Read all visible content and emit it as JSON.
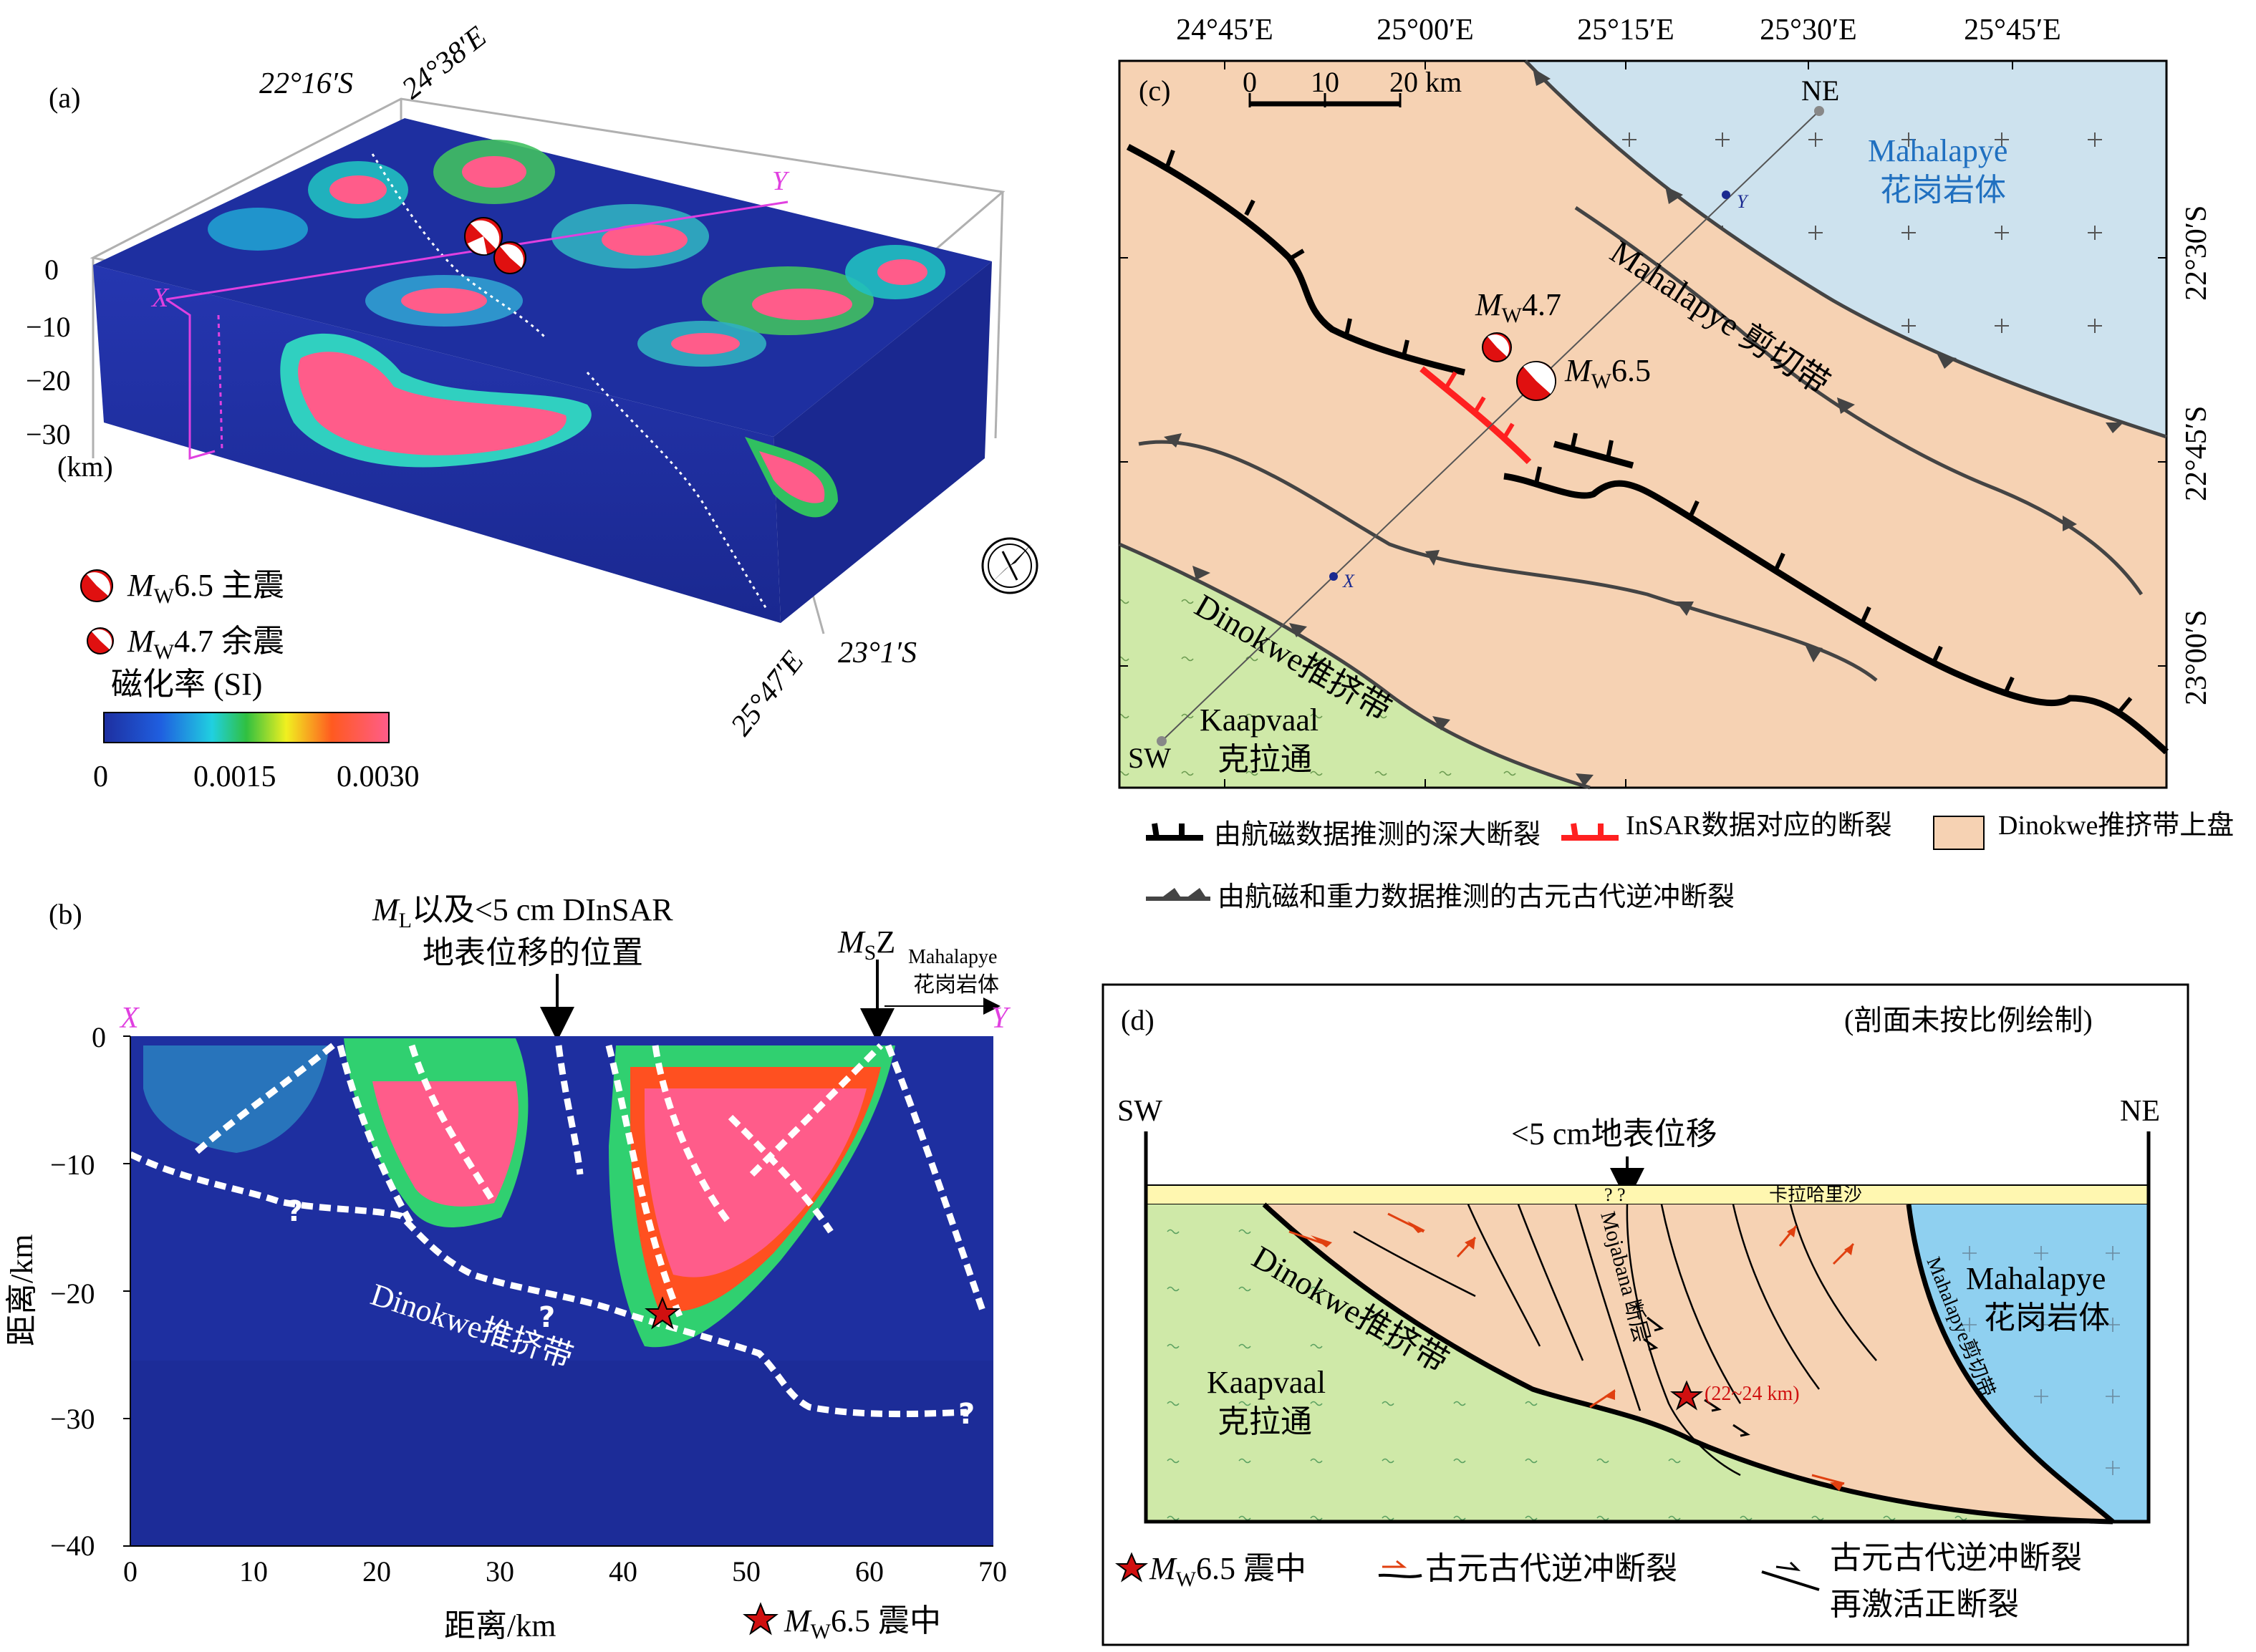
{
  "panel_a": {
    "label": "(a)",
    "coord_lat_top": "22°16′S",
    "coord_lon_top": "24°38′E",
    "coord_lat_bottom": "23°1′S",
    "coord_lon_bottom": "25°47′E",
    "depth_ticks": [
      "0",
      "−10",
      "−20",
      "−30"
    ],
    "depth_unit": "(km)",
    "profile_start": "X",
    "profile_end": "Y",
    "legend_mainshock_mag": "6.5 主震",
    "legend_aftershock_mag": "4.7 余震",
    "legend_mw_M": "M",
    "legend_mw_sub": "W",
    "colorbar_title": "磁化率 (SI)",
    "colorbar_ticks": [
      "0",
      "0.0015",
      "0.0030"
    ]
  },
  "panel_b": {
    "label": "(b)",
    "annotation_top_1": "M",
    "annotation_top_1_sub": "L",
    "annotation_top_1_rest": "以及<5 cm DInSAR",
    "annotation_top_2": "地表位移的位置",
    "msz_M": "M",
    "msz_sub": "S",
    "msz_Z": "Z",
    "mahalapye_small": "Mahalapye",
    "granite_small": "花岗岩体",
    "profile_start": "X",
    "profile_end": "Y",
    "unit_label": "Dinokwe推挤带",
    "question_mark": "?",
    "ylabel": "距离/km",
    "xlabel": "距离/km",
    "yticks": [
      "0",
      "−10",
      "−20",
      "−30",
      "−40"
    ],
    "xticks": [
      "0",
      "10",
      "20",
      "30",
      "40",
      "50",
      "60",
      "70"
    ],
    "epicenter_legend_M": "M",
    "epicenter_legend_sub": "W",
    "epicenter_legend_rest": "6.5 震中"
  },
  "panel_c": {
    "label": "(c)",
    "lon_ticks": [
      "24°45′E",
      "25°00′E",
      "25°15′E",
      "25°30′E",
      "25°45′E"
    ],
    "lat_ticks": [
      "22°30′S",
      "22°45′S",
      "23°00′S"
    ],
    "scale_ticks": [
      "0",
      "10",
      "20 km"
    ],
    "ne_label": "NE",
    "sw_label": "SW",
    "x_label": "X",
    "y_label": "Y",
    "granite_en": "Mahalapye",
    "granite_cn": "花岗岩体",
    "shear_zone": "Mahalapye 剪切带",
    "aftershock_M": "M",
    "aftershock_sub": "W",
    "aftershock_mag": "4.7",
    "mainshock_M": "M",
    "mainshock_sub": "W",
    "mainshock_mag": "6.5",
    "thrust_belt": "Dinokwe推挤带",
    "kaapvaal_en": "Kaapvaal",
    "kaapvaal_cn": "克拉通",
    "legend_deep_fault": "由航磁数据推测的深大断裂",
    "legend_insar_fault": "InSAR数据对应的断裂",
    "legend_hanging_wall": "Dinokwe推挤带上盘",
    "legend_thrust": "由航磁和重力数据推测的古元古代逆冲断裂"
  },
  "panel_d": {
    "label": "(d)",
    "note": "(剖面未按比例绘制)",
    "sw_label": "SW",
    "ne_label": "NE",
    "surface_disp": "<5 cm地表位移",
    "sand_label": "卡拉哈里沙",
    "question_marks": "? ?",
    "fault_name": "Mojabana 断层",
    "depth_label": "(22~24 km)",
    "thrust_belt": "Dinokwe推挤带",
    "kaapvaal_en": "Kaapvaal",
    "kaapvaal_cn": "克拉通",
    "granite_en": "Mahalapye",
    "granite_cn": "花岗岩体",
    "shear_zone": "Mahalapye剪切带",
    "legend_epi_M": "M",
    "legend_epi_sub": "W",
    "legend_epi_rest": "6.5 震中",
    "legend_thrust": "古元古代逆冲断裂",
    "legend_reactivated_1": "古元古代逆冲断裂",
    "legend_reactivated_2": "再激活正断裂"
  },
  "colors": {
    "deep_blue": "#1e2fa0",
    "hot_pink": "#ff5c8a",
    "hanging_wall": "#f6d2b3",
    "granite": "#cde2ee",
    "kaapvaal": "#cfe9a8",
    "insar_red": "#ff2020",
    "magenta": "#e040e0"
  }
}
